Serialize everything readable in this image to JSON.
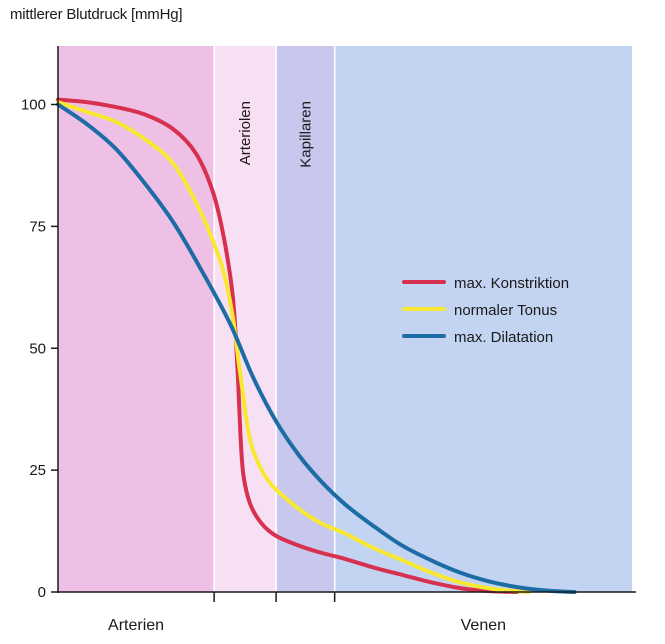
{
  "chart_data": {
    "type": "line",
    "title": "",
    "ylabel": "mittlerer Blutdruck [mmHg]",
    "xlabel": "",
    "ylim": [
      0,
      112
    ],
    "xlim": [
      0,
      100
    ],
    "yticks": [
      0,
      25,
      50,
      75,
      100
    ],
    "grid": false,
    "legend_position": "right",
    "regions": [
      {
        "label": "Arterien",
        "start": 0,
        "end": 27.2,
        "color": "#efc0e6",
        "label_placement": "bottom"
      },
      {
        "label": "Arteriolen",
        "start": 27.2,
        "end": 38.0,
        "color": "#f8e0f4",
        "label_placement": "top-vertical"
      },
      {
        "label": "Kapillaren",
        "start": 38.0,
        "end": 48.2,
        "color": "#c8c8ee",
        "label_placement": "top-vertical"
      },
      {
        "label": "Venen",
        "start": 48.2,
        "end": 100,
        "color": "#c2d4f2",
        "label_placement": "bottom"
      }
    ],
    "series": [
      {
        "name": "max. Konstriktion",
        "color": "#d8304f",
        "x": [
          0,
          5,
          10,
          15,
          20,
          24,
          27,
          29,
          30.5,
          31.3,
          31.8,
          32.3,
          33.5,
          35.5,
          38,
          42,
          46,
          50,
          55,
          60,
          65,
          70,
          75,
          80
        ],
        "y": [
          101,
          100.5,
          99.5,
          98,
          95,
          90,
          82,
          72,
          60,
          45,
          32,
          24,
          18,
          14,
          11.5,
          9.5,
          8,
          6.8,
          5,
          3.5,
          2,
          0.8,
          0.2,
          0
        ]
      },
      {
        "name": "normaler Tonus",
        "color": "#f8e832",
        "x": [
          0,
          5,
          10,
          15,
          20,
          24,
          27,
          29,
          30.5,
          31.5,
          32.3,
          33,
          34,
          36,
          38,
          42,
          46,
          50,
          55,
          60,
          65,
          70,
          76,
          82
        ],
        "y": [
          100.5,
          98.5,
          96.5,
          93,
          88,
          80,
          72,
          65,
          56,
          47,
          40,
          34,
          29,
          24,
          21,
          17,
          14,
          12,
          9,
          6.5,
          4,
          2,
          0.6,
          0
        ]
      },
      {
        "name": "max. Dilatation",
        "color": "#1e6ca6",
        "x": [
          0,
          5,
          10,
          15,
          20,
          25,
          30,
          34,
          38,
          42,
          46,
          50,
          55,
          60,
          65,
          70,
          75,
          80,
          85,
          90
        ],
        "y": [
          100,
          96,
          91,
          84,
          76,
          66,
          55,
          44,
          35,
          28,
          22.5,
          18,
          13.5,
          9.5,
          6.5,
          4,
          2.2,
          1,
          0.3,
          0
        ]
      }
    ]
  }
}
